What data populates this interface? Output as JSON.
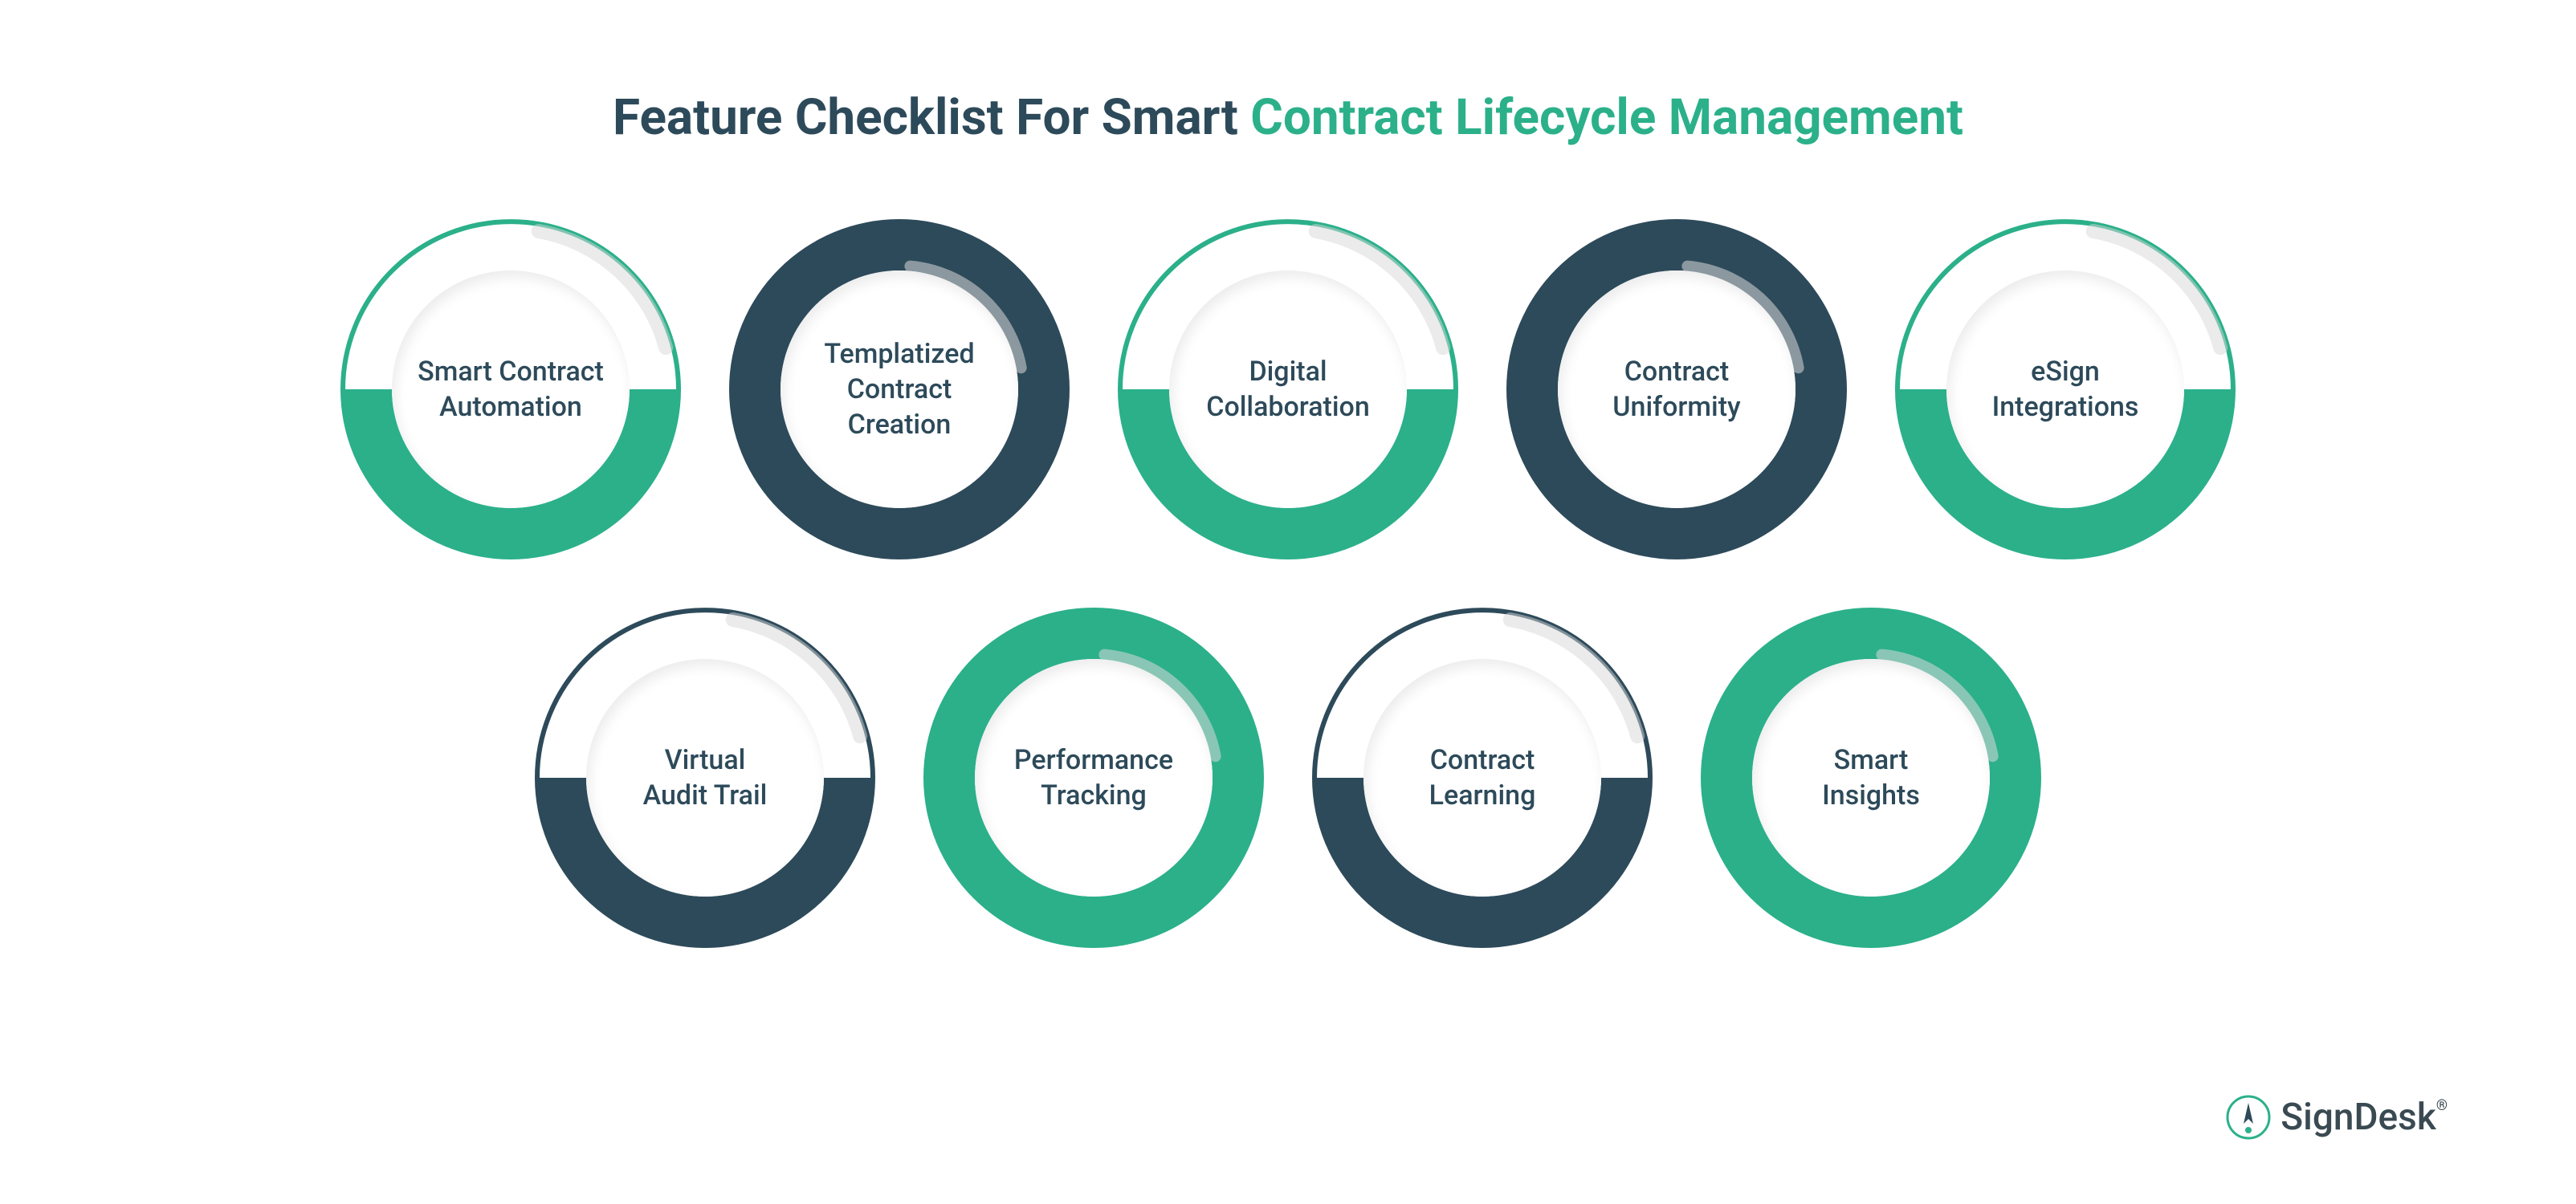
{
  "title": {
    "part1": "Feature Checklist For Smart ",
    "part2": "Contract Lifecycle Management",
    "part1_color": "#2d4a5a",
    "part2_color": "#2bb08a"
  },
  "colors": {
    "green": "#2bb08a",
    "navy": "#2d4a5a",
    "white": "#ffffff",
    "text": "#2d4a5a",
    "shadow": "#d8d8d8"
  },
  "layout": {
    "circle_diameter": 424,
    "inner_diameter": 296,
    "ring_thickness": 64,
    "gap": 60,
    "row_gap": 60
  },
  "features": [
    {
      "label": "Smart Contract\nAutomation",
      "top_outline_color": "#2bb08a",
      "bottom_fill_color": "#2bb08a",
      "top_style": "outline"
    },
    {
      "label": "Templatized\nContract Creation",
      "top_outline_color": "#2d4a5a",
      "bottom_fill_color": "#2d4a5a",
      "top_style": "thick"
    },
    {
      "label": "Digital\nCollaboration",
      "top_outline_color": "#2bb08a",
      "bottom_fill_color": "#2bb08a",
      "top_style": "outline"
    },
    {
      "label": "Contract\nUniformity",
      "top_outline_color": "#2d4a5a",
      "bottom_fill_color": "#2d4a5a",
      "top_style": "thick"
    },
    {
      "label": "eSign\nIntegrations",
      "top_outline_color": "#2bb08a",
      "bottom_fill_color": "#2bb08a",
      "top_style": "outline"
    },
    {
      "label": "Virtual\nAudit Trail",
      "top_outline_color": "#2d4a5a",
      "bottom_fill_color": "#2d4a5a",
      "top_style": "outline"
    },
    {
      "label": "Performance\nTracking",
      "top_outline_color": "#2bb08a",
      "bottom_fill_color": "#2bb08a",
      "top_style": "thick"
    },
    {
      "label": "Contract\nLearning",
      "top_outline_color": "#2d4a5a",
      "bottom_fill_color": "#2d4a5a",
      "top_style": "outline"
    },
    {
      "label": "Smart\nInsights",
      "top_outline_color": "#2bb08a",
      "bottom_fill_color": "#2bb08a",
      "top_style": "thick"
    }
  ],
  "rows_layout": [
    5,
    4
  ],
  "logo": {
    "text": "SignDesk",
    "reg": "®",
    "icon_color_outer": "#2bb08a",
    "icon_color_inner": "#2d4a5a"
  }
}
